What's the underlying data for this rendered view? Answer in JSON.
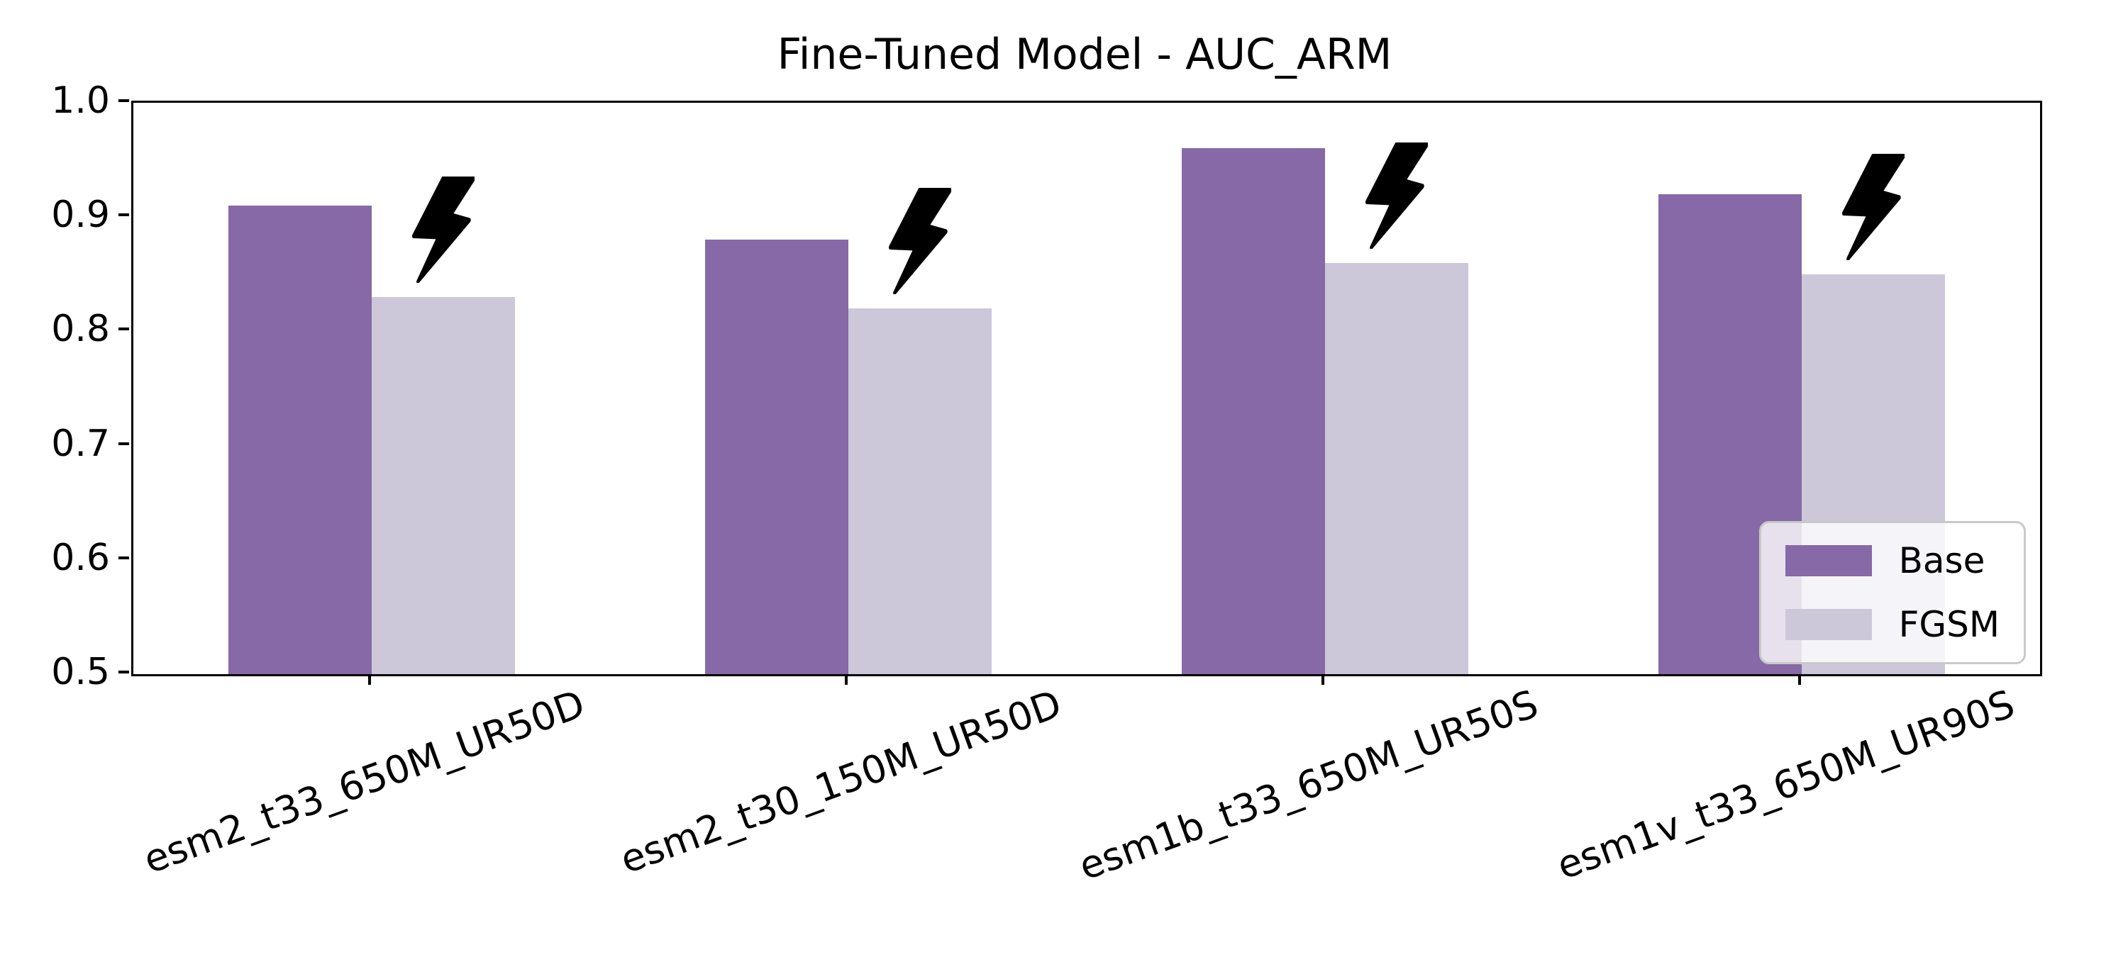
{
  "chart_data": {
    "type": "bar",
    "title": "Fine-Tuned Model - AUC_ARM",
    "categories": [
      "esm2_t33_650M_UR50D",
      "esm2_t30_150M_UR50D",
      "esm1b_t33_650M_UR50S",
      "esm1v_t33_650M_UR90S"
    ],
    "series": [
      {
        "name": "Base",
        "color": "#8669a6",
        "values": [
          0.91,
          0.88,
          0.96,
          0.92
        ]
      },
      {
        "name": "FGSM",
        "color": "#cdc7da",
        "values": [
          0.83,
          0.82,
          0.86,
          0.85
        ]
      }
    ],
    "ylim": [
      0.5,
      1.0
    ],
    "yticks": [
      1.0,
      0.9,
      0.8,
      0.7,
      0.6,
      0.5
    ],
    "xlabel": "",
    "ylabel": "",
    "grid": false,
    "legend": {
      "position": "lower right",
      "labels": [
        "Base",
        "FGSM"
      ]
    },
    "annotation": {
      "icon": "lightning-bolt",
      "applies_to_series": "FGSM",
      "color": "#000000"
    },
    "axis_color": "#000000",
    "background_color": "#ffffff"
  }
}
